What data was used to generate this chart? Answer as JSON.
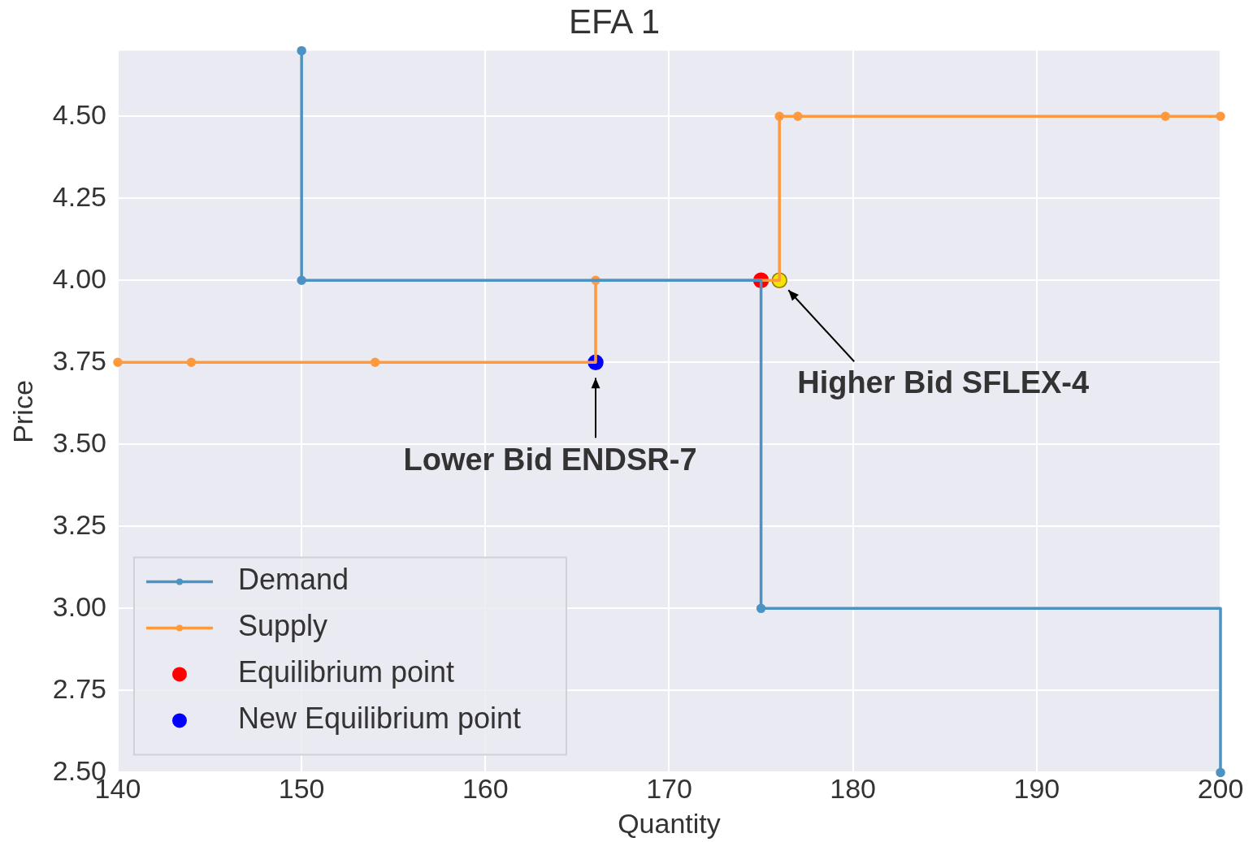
{
  "chart_data": {
    "type": "step",
    "title": "EFA 1",
    "xlabel": "Quantity",
    "ylabel": "Price",
    "xlim": [
      140,
      200
    ],
    "xticks": [
      140,
      150,
      160,
      170,
      180,
      190,
      200
    ],
    "ylim": [
      2.5,
      4.7
    ],
    "yticks": [
      {
        "value": 2.5,
        "label": "2.50"
      },
      {
        "value": 2.75,
        "label": "2.75"
      },
      {
        "value": 3,
        "label": "3.00"
      },
      {
        "value": 3.25,
        "label": "3.25"
      },
      {
        "value": 3.5,
        "label": "3.50"
      },
      {
        "value": 3.75,
        "label": "3.75"
      },
      {
        "value": 4,
        "label": "4.00"
      },
      {
        "value": 4.25,
        "label": "4.25"
      },
      {
        "value": 4.5,
        "label": "4.50"
      }
    ],
    "grid": true,
    "legend": "bottom left",
    "marker": "circle",
    "line_style": "solid",
    "series": [
      {
        "name": "Demand",
        "color": "#4c92c3",
        "x": [
          150,
          150,
          175,
          200
        ],
        "values": [
          4.7,
          4.0,
          3.0,
          2.5
        ]
      },
      {
        "name": "Supply",
        "color": "#ff993e",
        "x": [
          140,
          144,
          154,
          166,
          176,
          177,
          197,
          200
        ],
        "values": [
          3.75,
          3.75,
          3.75,
          4.0,
          4.5,
          4.5,
          4.5,
          4.5
        ]
      },
      {
        "name": "Equilibrium point",
        "type": "scatter",
        "color": "#ff0000",
        "x": [
          175
        ],
        "values": [
          4.0
        ]
      },
      {
        "name": "New Equilibrium point",
        "type": "scatter",
        "color": "#0000ff",
        "x": [
          166
        ],
        "values": [
          3.75
        ]
      },
      {
        "type": "scatter",
        "color": "#f5e400",
        "x": [
          176
        ],
        "values": [
          4.0
        ]
      }
    ],
    "annotations": [
      {
        "text": "Lower Bid ENDSR-7",
        "x": 166,
        "y": 3.75
      },
      {
        "text": "Higher Bid SFLEX-4",
        "x": 176,
        "y": 4.0
      }
    ]
  }
}
